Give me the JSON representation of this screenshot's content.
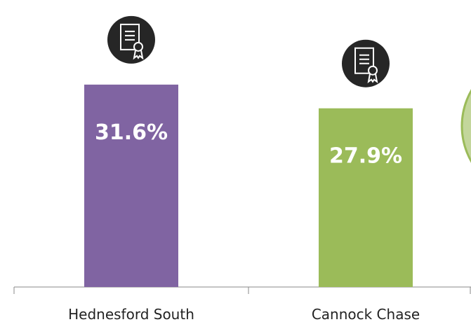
{
  "chart_data": {
    "type": "bar",
    "categories": [
      "Hednesford South",
      "Cannock Chase"
    ],
    "values": [
      31.6,
      27.9
    ],
    "value_labels": [
      "31.6%",
      "27.9%"
    ],
    "colors": [
      "#8064a2",
      "#9bbb59"
    ]
  }
}
